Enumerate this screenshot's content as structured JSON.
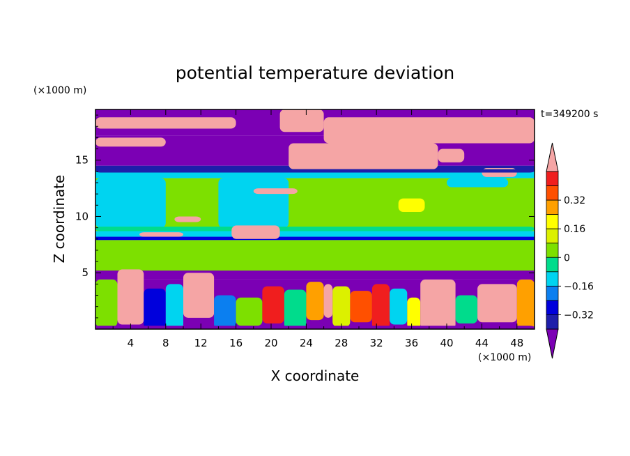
{
  "chart_data": {
    "type": "heatmap",
    "title": "potential temperature deviation",
    "xlabel": "X coordinate",
    "ylabel": "Z coordinate",
    "x_unit": "(×1000 m)",
    "y_unit": "(×1000 m)",
    "time_label": "t=349200 s",
    "xlim": [
      0,
      50
    ],
    "ylim": [
      0,
      19.5
    ],
    "x_ticks": [
      "4",
      "8",
      "12",
      "16",
      "20",
      "24",
      "28",
      "32",
      "36",
      "40",
      "44",
      "48"
    ],
    "y_ticks": [
      "5",
      "10",
      "15"
    ],
    "colorbar": {
      "labels": [
        "0.32",
        "0.16",
        "0",
        "−0.16",
        "−0.32"
      ],
      "levels": [
        -0.48,
        -0.4,
        -0.32,
        -0.24,
        -0.16,
        -0.08,
        0,
        0.08,
        0.16,
        0.24,
        0.32,
        0.4,
        0.48
      ],
      "colors": [
        "#7b00b4",
        "#1e1eaa",
        "#0000dc",
        "#0b7ff0",
        "#00d4f0",
        "#00dc8c",
        "#7de000",
        "#dcf000",
        "#ffff00",
        "#ffa000",
        "#ff5000",
        "#f01e1e",
        "#f5a5a5"
      ]
    }
  }
}
